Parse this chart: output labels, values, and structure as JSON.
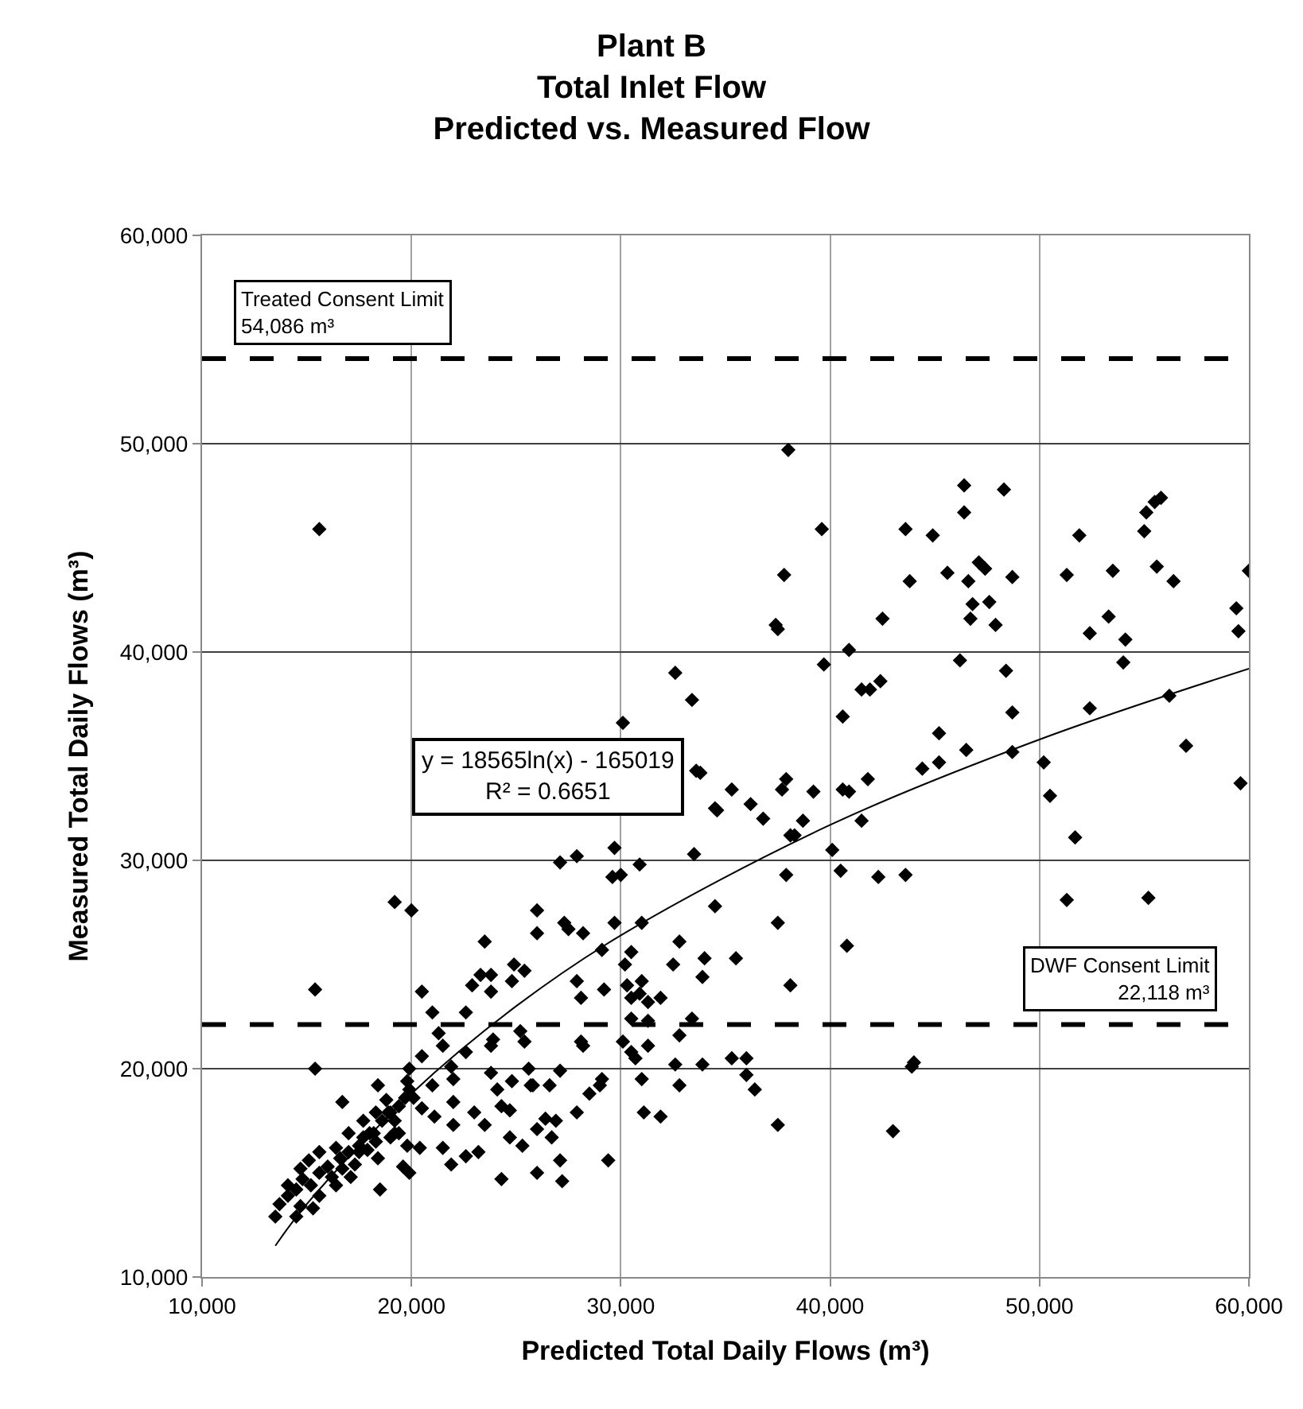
{
  "chart_data": {
    "type": "scatter",
    "title": "Plant B\nTotal Inlet Flow\nPredicted vs. Measured Flow",
    "xlabel": "Predicted Total Daily Flows (m³)",
    "ylabel": "Measured Total Daily Flows (m³)",
    "xlim": [
      10000,
      60000
    ],
    "ylim": [
      10000,
      60000
    ],
    "xticks": [
      {
        "value": 10000,
        "label": "10,000"
      },
      {
        "value": 20000,
        "label": "20,000"
      },
      {
        "value": 30000,
        "label": "30,000"
      },
      {
        "value": 40000,
        "label": "40,000"
      },
      {
        "value": 50000,
        "label": "50,000"
      },
      {
        "value": 60000,
        "label": "60,000"
      }
    ],
    "yticks": [
      {
        "value": 10000,
        "label": "10,000"
      },
      {
        "value": 20000,
        "label": "20,000"
      },
      {
        "value": 30000,
        "label": "30,000"
      },
      {
        "value": 40000,
        "label": "40,000"
      },
      {
        "value": 50000,
        "label": "50,000"
      },
      {
        "value": 60000,
        "label": "60,000"
      }
    ],
    "grid": true,
    "series": [
      {
        "color": "#000000",
        "marker": "diamond",
        "x": [
          19200,
          20000,
          15400,
          15400,
          20500,
          21000,
          22600,
          23500,
          23300,
          23800,
          22900,
          23800,
          26000,
          26000,
          24900,
          25400,
          24800,
          25200,
          23900,
          21300,
          21500,
          20500,
          19900,
          22600,
          21900,
          22000,
          23800,
          25600,
          21000,
          19900,
          18400,
          16700,
          20500,
          21100,
          22000,
          24100,
          24800,
          25700,
          24300,
          24700,
          23000,
          22000,
          23500,
          26000,
          24700,
          21500,
          25300,
          22600,
          23200,
          21900,
          26000,
          24300,
          19600,
          19900,
          18500,
          19200,
          19800,
          20400,
          13700,
          14100,
          14500,
          14800,
          15200,
          15600,
          16000,
          16200,
          16600,
          17000,
          17300,
          17500,
          17700,
          18000,
          18300,
          18600,
          18900,
          19200,
          19400,
          19700,
          19800,
          18800,
          18300,
          17700,
          17000,
          16400,
          15600,
          15100,
          14700,
          14100,
          16400,
          15600,
          15300,
          14700,
          16700,
          17500,
          18200,
          19000,
          19400,
          20100,
          19000,
          18400,
          17900,
          17100,
          14500,
          13500,
          37400,
          32600,
          33400,
          33600,
          34500,
          35300,
          36200,
          36800,
          37700,
          37900,
          38100,
          37900,
          37500,
          38100,
          37500,
          33500,
          30900,
          29600,
          30000,
          29700,
          27100,
          27900,
          30100,
          27300,
          27500,
          28200,
          29700,
          31000,
          29100,
          30500,
          30200,
          32800,
          32500,
          34500,
          35500,
          34000,
          33900,
          27900,
          28100,
          28100,
          28200,
          29200,
          30300,
          31000,
          30500,
          30900,
          31300,
          31900,
          31300,
          30500,
          31300,
          30500,
          30700,
          30100,
          32800,
          33400,
          32600,
          33900,
          35300,
          36000,
          36000,
          36400,
          32800,
          31000,
          31100,
          31900,
          29100,
          29000,
          28500,
          27900,
          27100,
          26600,
          25800,
          26400,
          26900,
          26700,
          27100,
          27200,
          29400,
          23800,
          25400,
          38000,
          39600,
          37800,
          37500,
          39700,
          40900,
          40600,
          41500,
          41900,
          42400,
          33800,
          34600,
          39200,
          38700,
          38300,
          40600,
          40900,
          41500,
          41800,
          40100,
          40500,
          42300,
          43600,
          40800,
          43600,
          43800,
          44900,
          45600,
          46400,
          46400,
          46600,
          47100,
          47400,
          48300,
          48700,
          46800,
          47600,
          46700,
          47900,
          42500,
          46200,
          48400,
          48700,
          45200,
          46500,
          45200,
          44400,
          48700,
          50200,
          50500,
          51700,
          51300,
          51900,
          52400,
          53300,
          53500,
          54100,
          54000,
          52400,
          55000,
          55100,
          55500,
          55800,
          55600,
          56400,
          56200,
          57000,
          60000,
          59400,
          59500,
          59600,
          51300,
          55200,
          15600,
          43000,
          44000,
          43900
        ],
        "values": [
          28000,
          27600,
          23800,
          20000,
          23700,
          22700,
          22700,
          26100,
          24500,
          24500,
          24000,
          23700,
          27600,
          26500,
          25000,
          24700,
          24200,
          21800,
          21400,
          21700,
          21100,
          20600,
          20000,
          20800,
          20100,
          19500,
          19800,
          20000,
          19200,
          19000,
          19200,
          18400,
          18100,
          17700,
          18400,
          19000,
          19400,
          19200,
          18200,
          18000,
          17900,
          17300,
          17300,
          17100,
          16700,
          16200,
          16300,
          15800,
          16000,
          15400,
          15000,
          14700,
          15300,
          15000,
          14200,
          16900,
          16300,
          16200,
          13500,
          13900,
          14200,
          14700,
          14400,
          15000,
          15300,
          14800,
          15700,
          16000,
          15400,
          16300,
          16700,
          16900,
          16500,
          17500,
          17900,
          17500,
          18200,
          18600,
          19400,
          18500,
          17900,
          17500,
          16900,
          16200,
          16000,
          15600,
          15200,
          14400,
          14400,
          13900,
          13300,
          13400,
          15200,
          16000,
          16900,
          17900,
          16900,
          18600,
          16700,
          15700,
          16100,
          14800,
          12900,
          12900,
          41300,
          39000,
          37700,
          34300,
          32500,
          33400,
          32700,
          32000,
          33400,
          33900,
          31200,
          29300,
          27000,
          24000,
          17300,
          30300,
          29800,
          29200,
          29300,
          30600,
          29900,
          30200,
          36600,
          27000,
          26700,
          26500,
          27000,
          27000,
          25700,
          25600,
          25000,
          26100,
          25000,
          27800,
          25300,
          25300,
          24400,
          24200,
          23400,
          21300,
          21100,
          23800,
          24000,
          24200,
          23400,
          23600,
          23200,
          23400,
          22300,
          22400,
          21100,
          20800,
          20500,
          21300,
          21600,
          22400,
          20200,
          20200,
          20500,
          20500,
          19700,
          19000,
          19200,
          19500,
          17900,
          17700,
          19500,
          19200,
          18800,
          17900,
          19900,
          19200,
          19200,
          17600,
          17500,
          16700,
          15600,
          14600,
          15600,
          21100,
          21300,
          49700,
          45900,
          43700,
          41100,
          39400,
          40100,
          36900,
          38200,
          38200,
          38600,
          34200,
          32400,
          33300,
          31900,
          31200,
          33400,
          33300,
          31900,
          33900,
          30500,
          29500,
          29200,
          29300,
          25900,
          45900,
          43400,
          45600,
          43800,
          48000,
          46700,
          43400,
          44300,
          44000,
          47800,
          43600,
          42300,
          42400,
          41600,
          41300,
          41600,
          39600,
          39100,
          37100,
          36100,
          35300,
          34700,
          34400,
          35200,
          34700,
          33100,
          31100,
          43700,
          45600,
          40900,
          41700,
          43900,
          40600,
          39500,
          37300,
          45800,
          46700,
          47200,
          47400,
          44100,
          43400,
          37900,
          35500,
          43900,
          42100,
          41000,
          33700,
          28100,
          28200,
          45900,
          17000,
          20300,
          20100
        ]
      },
      {
        "type": "line",
        "color": "#000000",
        "marker": "none",
        "line_style": "solid",
        "x": [
          13500,
          15000,
          20000,
          25000,
          30000,
          40000,
          50000,
          60000
        ],
        "values": [
          11500,
          13500,
          18800,
          23000,
          26400,
          31700,
          35800,
          39200
        ]
      }
    ],
    "ref_lines": [
      {
        "axis": "y",
        "value": 54086,
        "label": "Treated Consent Limit\n54,086 m³",
        "color": "#000000",
        "line_style": "dashed"
      },
      {
        "axis": "y",
        "value": 22118,
        "label": "DWF Consent Limit\n22,118 m³",
        "color": "#000000",
        "line_style": "dashed"
      }
    ],
    "annotations": [
      "y = 18565ln(x) - 165019\nR² = 0.6651"
    ]
  }
}
